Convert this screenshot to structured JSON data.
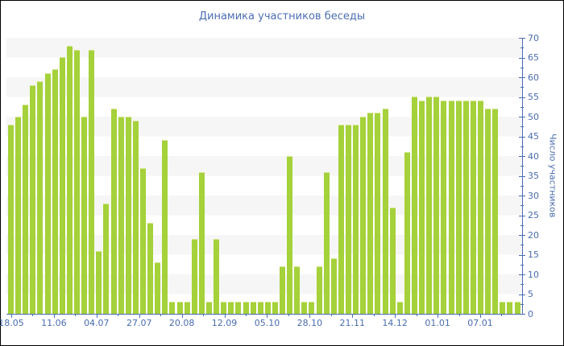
{
  "title": "Динамика участников беседы",
  "colors": {
    "bar": "#a5d13a",
    "bar_top": "#d2e58c",
    "axis": "#4a6db3",
    "label": "#4a6caf",
    "title": "#4d6fb3",
    "stripe": "#f6f6f6",
    "bg": "#ffffff",
    "frame": "#000000"
  },
  "chart_data": {
    "type": "bar",
    "title": "Динамика участников беседы",
    "xlabel": "",
    "ylabel": "Число участников",
    "ylim": [
      0,
      70
    ],
    "y_tick_step": 5,
    "y_ticks": [
      0,
      5,
      10,
      15,
      20,
      25,
      30,
      35,
      40,
      45,
      50,
      55,
      60,
      65,
      70
    ],
    "x_tick_labels": [
      "18.05",
      "11.06",
      "04.07",
      "27.07",
      "20.08",
      "12.09",
      "05.10",
      "28.10",
      "21.11",
      "14.12",
      "01.01",
      "07.01"
    ],
    "grid": "horizontal-stripes",
    "legend": "none",
    "axis_side": "right",
    "values": [
      48,
      50,
      53,
      58,
      59,
      61,
      62,
      65,
      68,
      67,
      50,
      67,
      16,
      28,
      52,
      50,
      50,
      49,
      37,
      23,
      13,
      44,
      3,
      3,
      3,
      19,
      36,
      3,
      19,
      3,
      3,
      3,
      3,
      3,
      3,
      3,
      3,
      12,
      40,
      12,
      3,
      3,
      12,
      36,
      14,
      48,
      48,
      48,
      50,
      51,
      51,
      52,
      27,
      3,
      41,
      55,
      54,
      55,
      55,
      54,
      54,
      54,
      54,
      54,
      54,
      52,
      52,
      3,
      3,
      3
    ]
  }
}
